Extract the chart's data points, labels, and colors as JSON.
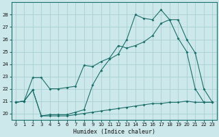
{
  "xlabel": "Humidex (Indice chaleur)",
  "bg_color": "#cce8ea",
  "grid_color": "#a8d0d3",
  "line_color": "#1a6e6a",
  "xlim": [
    -0.5,
    23.5
  ],
  "ylim": [
    19.5,
    29.0
  ],
  "xticks": [
    0,
    1,
    2,
    3,
    4,
    5,
    6,
    7,
    8,
    9,
    10,
    11,
    12,
    13,
    14,
    15,
    16,
    17,
    18,
    19,
    20,
    21,
    22,
    23
  ],
  "yticks": [
    20,
    21,
    22,
    23,
    24,
    25,
    26,
    27,
    28
  ],
  "s1_x": [
    0,
    1,
    2,
    3,
    4,
    5,
    6,
    7,
    8,
    9,
    10,
    11,
    12,
    13,
    14,
    15,
    16,
    17,
    18,
    19,
    20,
    21,
    22,
    23
  ],
  "s1_y": [
    20.9,
    21.0,
    21.9,
    19.8,
    19.8,
    19.8,
    19.8,
    19.9,
    20.0,
    20.1,
    20.2,
    20.3,
    20.4,
    20.5,
    20.6,
    20.7,
    20.8,
    20.8,
    20.9,
    20.9,
    21.0,
    20.9,
    20.9,
    20.9
  ],
  "s2_x": [
    0,
    1,
    2,
    3,
    4,
    5,
    6,
    7,
    8,
    9,
    10,
    11,
    12,
    13,
    14,
    15,
    16,
    17,
    18,
    19,
    20,
    21,
    22,
    23
  ],
  "s2_y": [
    20.9,
    21.0,
    22.9,
    22.9,
    22.0,
    22.0,
    22.1,
    22.2,
    23.9,
    23.8,
    24.2,
    24.5,
    25.5,
    25.3,
    25.5,
    25.8,
    26.3,
    27.3,
    27.6,
    27.6,
    26.0,
    24.9,
    22.0,
    20.9
  ],
  "s3_x": [
    0,
    1,
    2,
    3,
    4,
    5,
    6,
    7,
    8,
    9,
    10,
    11,
    12,
    13,
    14,
    15,
    16,
    17,
    18,
    19,
    20,
    21,
    22,
    23
  ],
  "s3_y": [
    20.9,
    21.0,
    21.9,
    19.8,
    19.9,
    19.9,
    19.9,
    20.1,
    20.3,
    22.3,
    23.5,
    24.4,
    24.8,
    26.0,
    28.0,
    27.7,
    27.6,
    28.4,
    27.6,
    26.1,
    25.0,
    22.0,
    20.9,
    20.9
  ]
}
